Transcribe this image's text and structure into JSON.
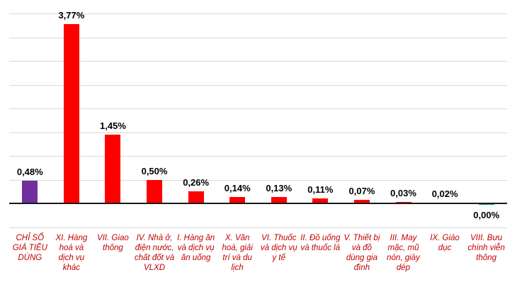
{
  "chart_data": {
    "type": "bar",
    "title": "",
    "xlabel": "",
    "ylabel": "",
    "legend": "none",
    "grid": true,
    "grid_step": 0.5,
    "ylim": [
      -0.5,
      4.0
    ],
    "unit": "%",
    "categories": [
      "CHỈ SỐ GIÁ TIÊU DÙNG",
      "XI. Hàng hoá và dịch vụ khác",
      "VII. Giao thông",
      "IV. Nhà ở, điện nước, chất đốt và VLXD",
      "I. Hàng ăn và dịch vụ ăn uống",
      "X. Văn hoá, giải trí và du lịch",
      "VI. Thuốc và dịch vụ y tế",
      "II. Đồ uống và thuốc lá",
      "V. Thiết bị và đồ dùng gia đình",
      "III. May mặc, mũ nón, giày dép",
      "IX. Giáo dục",
      "VIII. Bưu chính viễn thông"
    ],
    "values": [
      0.48,
      3.77,
      1.45,
      0.5,
      0.26,
      0.14,
      0.13,
      0.11,
      0.07,
      0.03,
      0.02,
      0.0
    ],
    "value_labels": [
      "0,48%",
      "3,77%",
      "1,45%",
      "0,50%",
      "0,26%",
      "0,14%",
      "0,13%",
      "0,11%",
      "0,07%",
      "0,03%",
      "0,02%",
      "0,00%"
    ],
    "bar_colors": [
      "#7030A0",
      "#FF0000",
      "#FF0000",
      "#FF0000",
      "#FF0000",
      "#FF0000",
      "#FF0000",
      "#FF0000",
      "#FF0000",
      "#FF0000",
      "#FF0000",
      "#00B050"
    ]
  },
  "colors": {
    "cpi_bar": "#7030A0",
    "group_bar": "#FF0000",
    "zero_bar": "#00B050",
    "category_label": "#C00000",
    "value_label": "#000000",
    "gridline": "#D9D9D9",
    "axis": "#1A1A1A",
    "background": "#FFFFFF"
  }
}
